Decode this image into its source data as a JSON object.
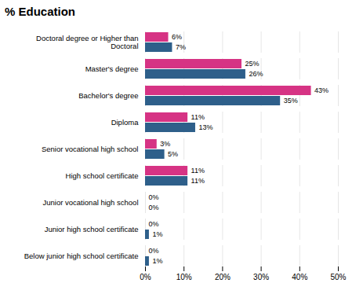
{
  "chart_data": {
    "type": "bar",
    "orientation": "horizontal",
    "title": "% Education",
    "categories": [
      "Below junior high school certificate",
      "Junior high school certificate",
      "Junior vocational high school",
      "High school certificate",
      "Senior vocational high school",
      "Diploma",
      "Bachelor's degree",
      "Master's degree",
      "Doctoral degree or Higher than\nDoctoral"
    ],
    "series": [
      {
        "color": "#d63384",
        "values": [
          0,
          0,
          0,
          11,
          3,
          11,
          43,
          25,
          6
        ],
        "value_labels": [
          "0%",
          "0%",
          "0%",
          "11%",
          "3%",
          "11%",
          "43%",
          "25%",
          "6%"
        ]
      },
      {
        "color": "#2e5f8a",
        "values": [
          1,
          1,
          0,
          11,
          5,
          13,
          35,
          26,
          7
        ],
        "value_labels": [
          "1%",
          "1%",
          "0%",
          "11%",
          "5%",
          "13%",
          "35%",
          "26%",
          "7%"
        ]
      }
    ],
    "xlim": [
      0,
      50
    ],
    "xticks": [
      {
        "value": 0,
        "label": "0%"
      },
      {
        "value": 10,
        "label": "10%"
      },
      {
        "value": 20,
        "label": "20%"
      },
      {
        "value": 30,
        "label": "30%"
      },
      {
        "value": 40,
        "label": "40%"
      },
      {
        "value": 50,
        "label": "50%"
      }
    ],
    "grid": true,
    "data_labels": true
  }
}
